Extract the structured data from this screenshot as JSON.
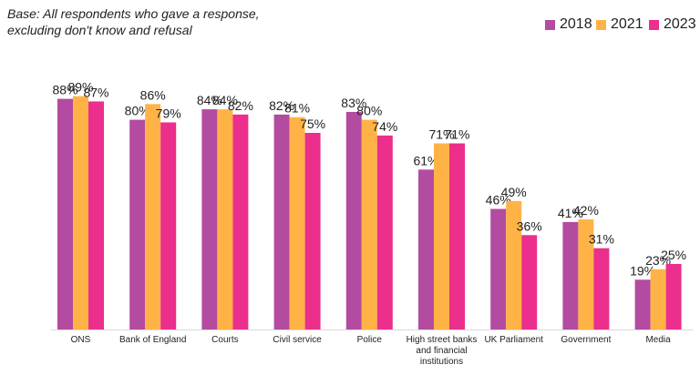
{
  "note": {
    "line1": "Base: All respondents who gave a response,",
    "line2": "excluding don't know and refusal"
  },
  "chart_data": {
    "type": "bar",
    "categories": [
      "ONS",
      "Bank of England",
      "Courts",
      "Civil service",
      "Police",
      "High street banks and financial institutions",
      "UK Parliament",
      "Government",
      "Media"
    ],
    "series": [
      {
        "name": "2018",
        "color": "#B34BA0",
        "values": [
          88,
          80,
          84,
          82,
          83,
          61,
          46,
          41,
          19
        ]
      },
      {
        "name": "2021",
        "color": "#FFB347",
        "values": [
          89,
          86,
          84,
          81,
          80,
          71,
          49,
          42,
          23
        ]
      },
      {
        "name": "2023",
        "color": "#EC2E8C",
        "values": [
          87,
          79,
          82,
          75,
          74,
          71,
          36,
          31,
          25
        ]
      }
    ],
    "value_suffix": "%",
    "ylim": [
      0,
      100
    ],
    "legend": "top-right",
    "grid": false
  }
}
